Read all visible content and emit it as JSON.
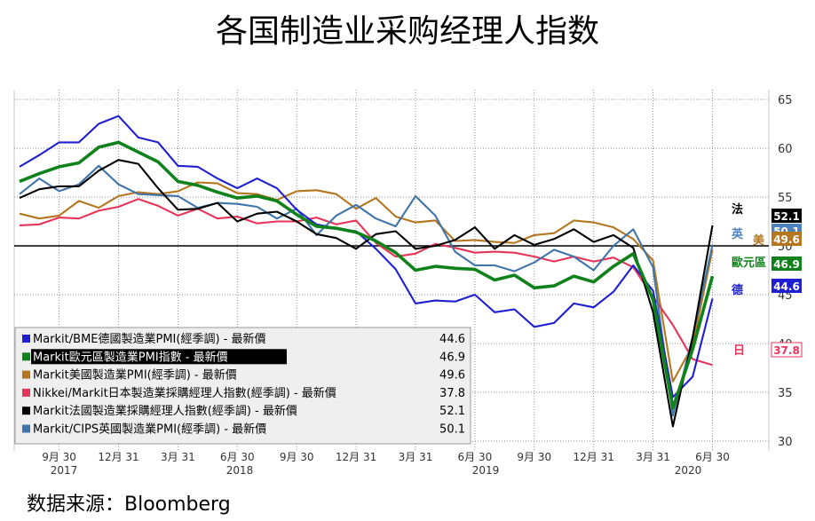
{
  "title": "各国制造业采购经理人指数",
  "source_label": "数据来源：Bloomberg",
  "colors": {
    "germany": "#1f1fd1",
    "eurozone": "#10821b",
    "us": "#b4761f",
    "japan": "#e5365a",
    "france": "#000000",
    "uk": "#3f74a8",
    "uk_tag": "#4f81bd"
  },
  "chart_data": {
    "type": "line",
    "title": "各国制造业采购经理人指数",
    "xlabel": "",
    "ylabel": "",
    "ylim": [
      29,
      66
    ],
    "reference_line": 50,
    "y_ticks": [
      30,
      35,
      40,
      45,
      50,
      55,
      60,
      65
    ],
    "x_tick_labels": [
      "9月 30",
      "12月 31",
      "3月 31",
      "6月 30",
      "9月 30",
      "12月 31",
      "3月 31",
      "6月 30",
      "9月 30",
      "12月 31",
      "3月 31",
      "6月 30"
    ],
    "x_year_labels": [
      "2017",
      "2018",
      "2019",
      "2020"
    ],
    "x": [
      "2017-07",
      "2017-08",
      "2017-09",
      "2017-10",
      "2017-11",
      "2017-12",
      "2018-01",
      "2018-02",
      "2018-03",
      "2018-04",
      "2018-05",
      "2018-06",
      "2018-07",
      "2018-08",
      "2018-09",
      "2018-10",
      "2018-11",
      "2018-12",
      "2019-01",
      "2019-02",
      "2019-03",
      "2019-04",
      "2019-05",
      "2019-06",
      "2019-07",
      "2019-08",
      "2019-09",
      "2019-10",
      "2019-11",
      "2019-12",
      "2020-01",
      "2020-02",
      "2020-03",
      "2020-04",
      "2020-05",
      "2020-06"
    ],
    "grid": true,
    "legend_position": "bottom-left",
    "series": [
      {
        "key": "germany",
        "name": "Markit/BME德國製造業PMI(經季調) - 最新價",
        "end_label": "德",
        "last_value": "44.6",
        "values": [
          58.1,
          59.3,
          60.6,
          60.6,
          62.5,
          63.3,
          61.1,
          60.6,
          58.2,
          58.1,
          56.9,
          55.9,
          56.9,
          55.9,
          53.7,
          52.2,
          51.8,
          51.5,
          49.7,
          47.6,
          44.1,
          44.4,
          44.3,
          45.0,
          43.2,
          43.5,
          41.7,
          42.1,
          44.1,
          43.7,
          45.3,
          48.0,
          45.4,
          34.5,
          36.6,
          44.6
        ]
      },
      {
        "key": "eurozone",
        "name": "Markit歐元區製造業PMI指數 - 最新價",
        "end_label": "歐元區",
        "last_value": "46.9",
        "values": [
          56.6,
          57.4,
          58.1,
          58.5,
          60.1,
          60.6,
          59.6,
          58.6,
          56.6,
          56.2,
          55.5,
          54.9,
          55.1,
          54.6,
          53.2,
          52.0,
          51.8,
          51.4,
          50.5,
          49.3,
          47.5,
          47.9,
          47.7,
          47.6,
          46.5,
          47.0,
          45.7,
          45.9,
          46.9,
          46.3,
          47.9,
          49.2,
          44.5,
          33.4,
          39.4,
          46.9
        ]
      },
      {
        "key": "us",
        "name": "Markit美國製造業PMI(經季調) - 最新價",
        "end_label": "美",
        "last_value": "49.6",
        "values": [
          53.3,
          52.8,
          53.1,
          54.6,
          53.9,
          55.1,
          55.5,
          55.3,
          55.6,
          56.5,
          56.4,
          55.4,
          55.3,
          54.7,
          55.6,
          55.7,
          55.3,
          53.8,
          54.9,
          53.0,
          52.4,
          52.6,
          50.5,
          50.6,
          50.4,
          50.3,
          51.1,
          51.3,
          52.6,
          52.4,
          51.9,
          50.7,
          48.5,
          36.1,
          39.8,
          49.6
        ]
      },
      {
        "key": "japan",
        "name": "Nikkei/Markit日本製造業採購經理人指數(經季調) - 最新價",
        "end_label": "日",
        "last_value": "37.8",
        "values": [
          52.1,
          52.2,
          52.9,
          52.8,
          53.6,
          54.0,
          54.8,
          54.1,
          53.1,
          53.8,
          52.8,
          53.0,
          52.3,
          52.5,
          52.5,
          52.9,
          52.2,
          52.6,
          50.3,
          48.9,
          49.2,
          50.2,
          49.8,
          49.3,
          49.4,
          49.3,
          48.9,
          48.4,
          48.9,
          48.4,
          48.8,
          47.8,
          44.8,
          41.9,
          38.4,
          37.8
        ]
      },
      {
        "key": "france",
        "name": "Markit法國製造業採購經理人指數(經季調) - 最新價",
        "end_label": "法",
        "last_value": "52.1",
        "values": [
          54.9,
          55.8,
          56.1,
          56.1,
          57.7,
          58.8,
          58.4,
          55.9,
          53.7,
          53.8,
          54.4,
          52.5,
          53.3,
          53.5,
          52.5,
          51.2,
          50.8,
          49.7,
          51.2,
          51.5,
          49.7,
          50.0,
          50.6,
          51.9,
          49.7,
          51.1,
          50.1,
          50.7,
          51.7,
          50.4,
          51.1,
          49.8,
          43.2,
          31.5,
          40.6,
          52.1
        ]
      },
      {
        "key": "uk",
        "name": "Markit/CIPS英國製造業PMI(經季調) - 最新價",
        "end_label": "英",
        "last_value": "50.1",
        "values": [
          55.3,
          56.9,
          55.6,
          56.3,
          58.2,
          56.3,
          55.3,
          55.2,
          55.1,
          53.9,
          54.4,
          54.3,
          54.0,
          52.8,
          53.8,
          51.1,
          53.1,
          54.2,
          52.8,
          52.0,
          55.1,
          53.1,
          49.4,
          48.0,
          48.0,
          47.4,
          48.3,
          49.6,
          48.9,
          47.5,
          50.0,
          51.7,
          47.8,
          32.6,
          40.7,
          50.1
        ]
      }
    ]
  }
}
